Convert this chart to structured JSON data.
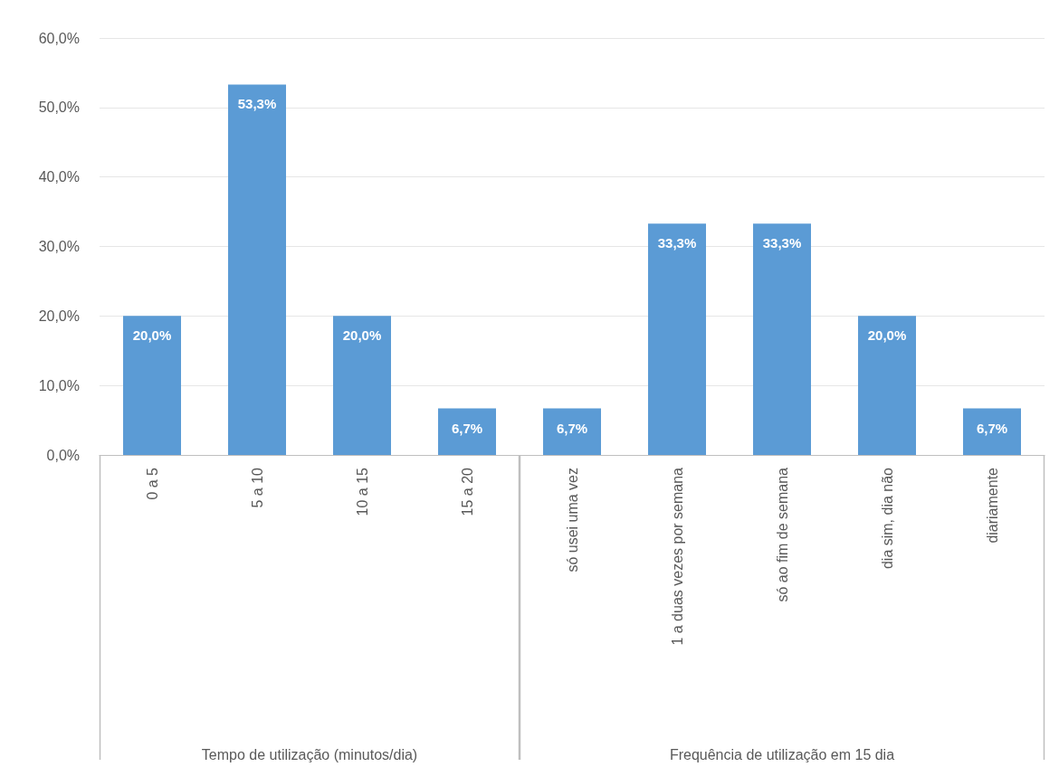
{
  "chart_data": [
    {
      "type": "bar",
      "xlabel": "Tempo de utilização (minutos/dia)",
      "categories": [
        "0 a 5",
        "5 a 10",
        "10 a 15",
        "15 a 20"
      ],
      "values": [
        20.0,
        53.3,
        20.0,
        6.7
      ],
      "value_labels": [
        "20,0%",
        "53,3%",
        "20,0%",
        "6,7%"
      ],
      "color": "#5b9bd5",
      "ylim": [
        0,
        60
      ],
      "yticks": [
        {
          "value": 0,
          "label": "0,0%"
        },
        {
          "value": 10,
          "label": "10,0%"
        },
        {
          "value": 20,
          "label": "20,0%"
        },
        {
          "value": 30,
          "label": "30,0%"
        },
        {
          "value": 40,
          "label": "40,0%"
        },
        {
          "value": 50,
          "label": "50,0%"
        },
        {
          "value": 60,
          "label": "60,0%"
        }
      ],
      "grid": "y"
    },
    {
      "type": "bar",
      "xlabel": "Frequência de utilização em 15 dia",
      "categories": [
        "só usei uma vez",
        "1 a duas vezes por semana",
        "só ao fim de semana",
        "dia sim, dia não",
        "diariamente"
      ],
      "values": [
        6.7,
        33.3,
        33.3,
        20.0,
        6.7
      ],
      "value_labels": [
        "6,7%",
        "33,3%",
        "33,3%",
        "20,0%",
        "6,7%"
      ],
      "color": "#5b9bd5",
      "ylim": [
        0,
        60
      ],
      "yticks": [
        {
          "value": 0,
          "label": null
        },
        {
          "value": 10,
          "label": null
        },
        {
          "value": 20,
          "label": null
        },
        {
          "value": 30,
          "label": null
        },
        {
          "value": 40,
          "label": null
        },
        {
          "value": 50,
          "label": null
        },
        {
          "value": 60,
          "label": null
        }
      ],
      "grid": "y",
      "tick_labels": "x"
    }
  ]
}
